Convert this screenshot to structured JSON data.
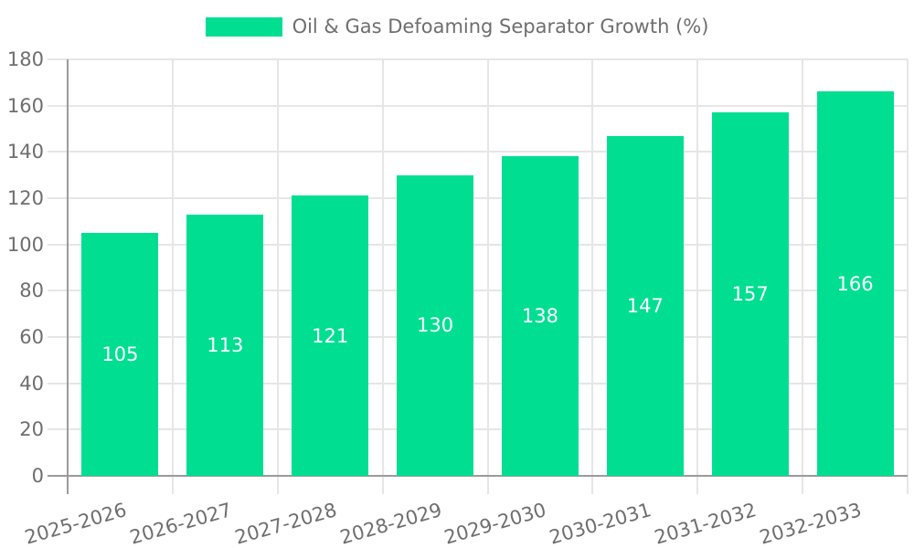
{
  "legend": {
    "label": "Oil & Gas Defoaming Separator Growth (%)"
  },
  "chart_data": {
    "type": "bar",
    "title": "Oil & Gas Defoaming Separator Growth (%)",
    "series_name": "Oil & Gas Defoaming Separator Growth (%)",
    "categories": [
      "2025-2026",
      "2026-2027",
      "2027-2028",
      "2028-2029",
      "2029-2030",
      "2030-2031",
      "2031-2032",
      "2032-2033"
    ],
    "values": [
      105,
      113,
      121,
      130,
      138,
      147,
      157,
      166
    ],
    "value_labels_shown": true,
    "xlabel": "",
    "ylabel": "",
    "ylim": [
      0,
      180
    ],
    "ytick_step": 20,
    "yticks": [
      0,
      20,
      40,
      60,
      80,
      100,
      120,
      140,
      160,
      180
    ],
    "grid": true,
    "legend_position": "top-center",
    "colors": {
      "bar": "#00de92",
      "grid": "#e6e6e6",
      "axis": "#9b9b9b",
      "text": "#6e6e6e",
      "value_label": "#ffffff",
      "background": "#ffffff"
    }
  }
}
